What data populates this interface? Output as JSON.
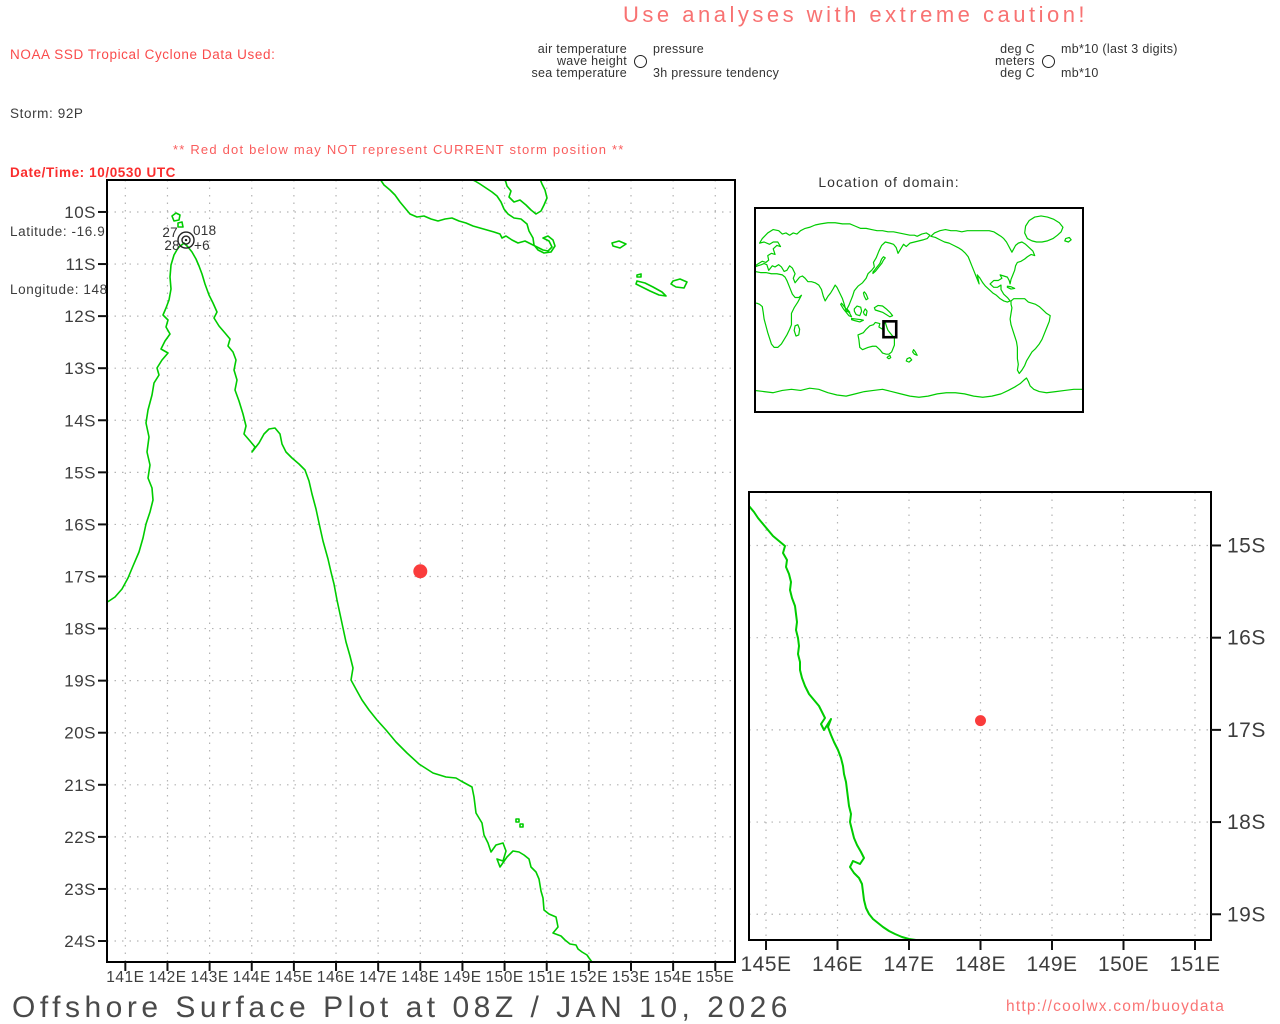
{
  "header": {
    "source_line": "NOAA SSD Tropical Cyclone Data Used:",
    "storm": "Storm: 92P",
    "datetime": "Date/Time: 10/0530 UTC",
    "latitude": "Latitude: -16.9",
    "longitude": "Longitude: 148",
    "caution": "Use analyses with extreme caution!"
  },
  "station_legend": {
    "left": [
      "air temperature",
      "wave height",
      "sea temperature"
    ],
    "right": [
      "pressure",
      "",
      "3h pressure tendency"
    ],
    "units_left": [
      "deg C",
      "meters",
      "deg C"
    ],
    "units_right": [
      "mb*10 (last 3 digits)",
      "",
      "mb*10"
    ]
  },
  "warning": "** Red dot below may NOT represent CURRENT storm position **",
  "inset": {
    "title": "Location of domain:"
  },
  "footer": {
    "title": "Offshore Surface Plot at 08Z / JAN 10, 2026",
    "url": "http://coolwx.com/buoydata"
  },
  "colors": {
    "coastline": "#00cc00",
    "storm_dot": "#fa3c3c",
    "grid": "#b4b4b4",
    "domain_box": "#000000"
  },
  "chart_data": [
    {
      "id": "main_map",
      "type": "map",
      "title": "",
      "x_tick_labels": [
        "141E",
        "142E",
        "143E",
        "144E",
        "145E",
        "146E",
        "147E",
        "148E",
        "149E",
        "150E",
        "151E",
        "152E",
        "153E",
        "154E",
        "155E"
      ],
      "x_tick_lons": [
        141,
        142,
        143,
        144,
        145,
        146,
        147,
        148,
        149,
        150,
        151,
        152,
        153,
        154,
        155
      ],
      "y_tick_labels": [
        "10S",
        "11S",
        "12S",
        "13S",
        "14S",
        "15S",
        "16S",
        "17S",
        "18S",
        "19S",
        "20S",
        "21S",
        "22S",
        "23S",
        "24S"
      ],
      "y_tick_lats": [
        -10,
        -11,
        -12,
        -13,
        -14,
        -15,
        -16,
        -17,
        -18,
        -19,
        -20,
        -21,
        -22,
        -23,
        -24
      ],
      "lon_range": [
        140.565,
        155.468
      ],
      "lat_range": [
        -9.386,
        -24.403
      ],
      "grid": true,
      "storm_dot": {
        "lon": 148,
        "lat": -16.9
      },
      "station_plot": {
        "lon": 142.44,
        "lat": -10.54,
        "air_temp": "27",
        "pressure": "018",
        "sea_temp": "28",
        "pressure_tendency": "+6"
      }
    },
    {
      "id": "zoom_map",
      "type": "map",
      "title": "",
      "x_tick_labels": [
        "145E",
        "146E",
        "147E",
        "148E",
        "149E",
        "150E",
        "151E"
      ],
      "x_tick_lons": [
        145,
        146,
        147,
        148,
        149,
        150,
        151
      ],
      "y_tick_labels": [
        "15S",
        "16S",
        "17S",
        "18S",
        "19S"
      ],
      "y_tick_lats": [
        -15,
        -16,
        -17,
        -18,
        -19
      ],
      "lon_range": [
        144.762,
        151.224
      ],
      "lat_range": [
        -14.42,
        -19.279
      ],
      "grid": true,
      "storm_dot": {
        "lon": 148,
        "lat": -16.9
      }
    },
    {
      "id": "world_inset",
      "type": "map",
      "title": "Location of domain:",
      "lon_range": [
        0,
        360
      ],
      "lat_range": [
        90,
        -90
      ],
      "domain_box": {
        "lon_min": 141,
        "lon_max": 155,
        "lat_min": -24,
        "lat_max": -10
      }
    }
  ]
}
